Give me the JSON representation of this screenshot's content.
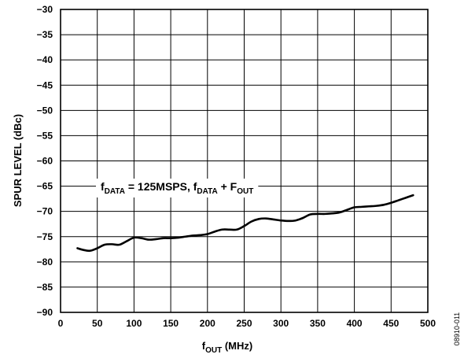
{
  "chart_data": {
    "type": "line",
    "title": "",
    "xlabel": {
      "main": "f",
      "sub": "OUT",
      "rest": " (MHz)"
    },
    "ylabel": "SPUR LEVEL (dBc)",
    "xlim": [
      0,
      500
    ],
    "ylim": [
      -90,
      -30
    ],
    "xticks": [
      0,
      50,
      100,
      150,
      200,
      250,
      300,
      350,
      400,
      450,
      500
    ],
    "yticks": [
      -30,
      -35,
      -40,
      -45,
      -50,
      -55,
      -60,
      -65,
      -70,
      -75,
      -80,
      -85,
      -90
    ],
    "grid": true,
    "annotation": {
      "f1": "f",
      "sub1": "DATA",
      "t1": " = 125MSPS, ",
      "f2": "f",
      "sub2": "DATA",
      "t2": " + F",
      "sub3": "OUT"
    },
    "figure_id": "08910-011",
    "series": [
      {
        "color": "#000000",
        "x": [
          23,
          30,
          40,
          50,
          60,
          70,
          80,
          90,
          100,
          110,
          120,
          130,
          140,
          150,
          160,
          170,
          180,
          190,
          200,
          210,
          220,
          230,
          240,
          250,
          260,
          270,
          280,
          290,
          300,
          310,
          320,
          330,
          340,
          350,
          360,
          370,
          380,
          390,
          400,
          410,
          420,
          430,
          440,
          450,
          460,
          470,
          480
        ],
        "y": [
          -77.3,
          -77.6,
          -77.8,
          -77.3,
          -76.6,
          -76.5,
          -76.6,
          -75.9,
          -75.2,
          -75.3,
          -75.6,
          -75.5,
          -75.3,
          -75.3,
          -75.2,
          -75.0,
          -74.8,
          -74.7,
          -74.5,
          -74.0,
          -73.6,
          -73.6,
          -73.6,
          -72.9,
          -72.0,
          -71.5,
          -71.4,
          -71.6,
          -71.8,
          -71.9,
          -71.8,
          -71.3,
          -70.6,
          -70.5,
          -70.5,
          -70.4,
          -70.2,
          -69.7,
          -69.2,
          -69.1,
          -69.0,
          -68.9,
          -68.7,
          -68.3,
          -67.8,
          -67.3,
          -66.8
        ]
      }
    ]
  }
}
